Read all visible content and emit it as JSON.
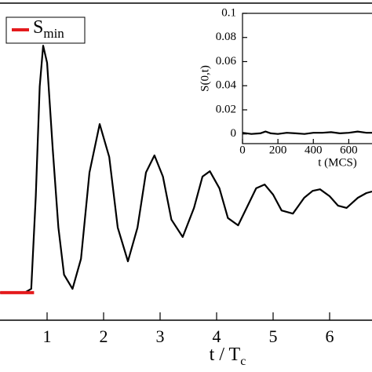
{
  "chart_data": [
    {
      "type": "line",
      "x_label": {
        "text": "t / T",
        "subscript": "c"
      },
      "xlim": [
        0,
        7
      ],
      "xticks": [
        1,
        2,
        3,
        4,
        5,
        6
      ],
      "ylim": [
        0,
        1
      ],
      "series": [
        {
          "color": "#000000",
          "x": [
            0.17,
            0.6,
            0.72,
            0.8,
            0.87,
            0.93,
            1.0,
            1.1,
            1.2,
            1.3,
            1.45,
            1.6,
            1.75,
            1.93,
            2.1,
            2.25,
            2.43,
            2.6,
            2.75,
            2.9,
            3.05,
            3.2,
            3.4,
            3.6,
            3.75,
            3.88,
            4.05,
            4.2,
            4.38,
            4.55,
            4.7,
            4.85,
            5.0,
            5.15,
            5.35,
            5.55,
            5.7,
            5.83,
            6.0,
            6.15,
            6.3,
            6.5,
            6.65,
            6.75
          ],
          "values": [
            0.087,
            0.087,
            0.099,
            0.392,
            0.739,
            0.868,
            0.814,
            0.541,
            0.293,
            0.144,
            0.099,
            0.194,
            0.467,
            0.62,
            0.516,
            0.293,
            0.186,
            0.293,
            0.467,
            0.521,
            0.454,
            0.318,
            0.263,
            0.355,
            0.454,
            0.471,
            0.417,
            0.323,
            0.3,
            0.362,
            0.417,
            0.429,
            0.397,
            0.347,
            0.337,
            0.387,
            0.409,
            0.414,
            0.392,
            0.362,
            0.355,
            0.387,
            0.402,
            0.407
          ]
        },
        {
          "name": "S",
          "name_subscript": "min",
          "color": "#e41a1c",
          "x": [
            0.17,
            0.77
          ],
          "values": [
            0.087,
            0.087
          ]
        }
      ]
    },
    {
      "type": "line",
      "x_label": "t (MCS)",
      "y_label": "S(0,t)",
      "xlim": [
        0,
        740
      ],
      "xticks": [
        0,
        200,
        400,
        600
      ],
      "ylim": [
        -0.008,
        0.1
      ],
      "yticks": [
        0,
        0.02,
        0.04,
        0.06,
        0.08,
        0.1
      ],
      "series": [
        {
          "color": "#000000",
          "x": [
            0,
            50,
            100,
            130,
            160,
            200,
            250,
            300,
            350,
            400,
            450,
            500,
            550,
            600,
            650,
            700,
            740
          ],
          "values": [
            0.001,
            0.0,
            0.0005,
            0.002,
            0.0005,
            0.0,
            0.001,
            0.0005,
            0.0,
            0.001,
            0.001,
            0.0015,
            0.0005,
            0.001,
            0.002,
            0.001,
            0.001
          ]
        }
      ]
    }
  ]
}
